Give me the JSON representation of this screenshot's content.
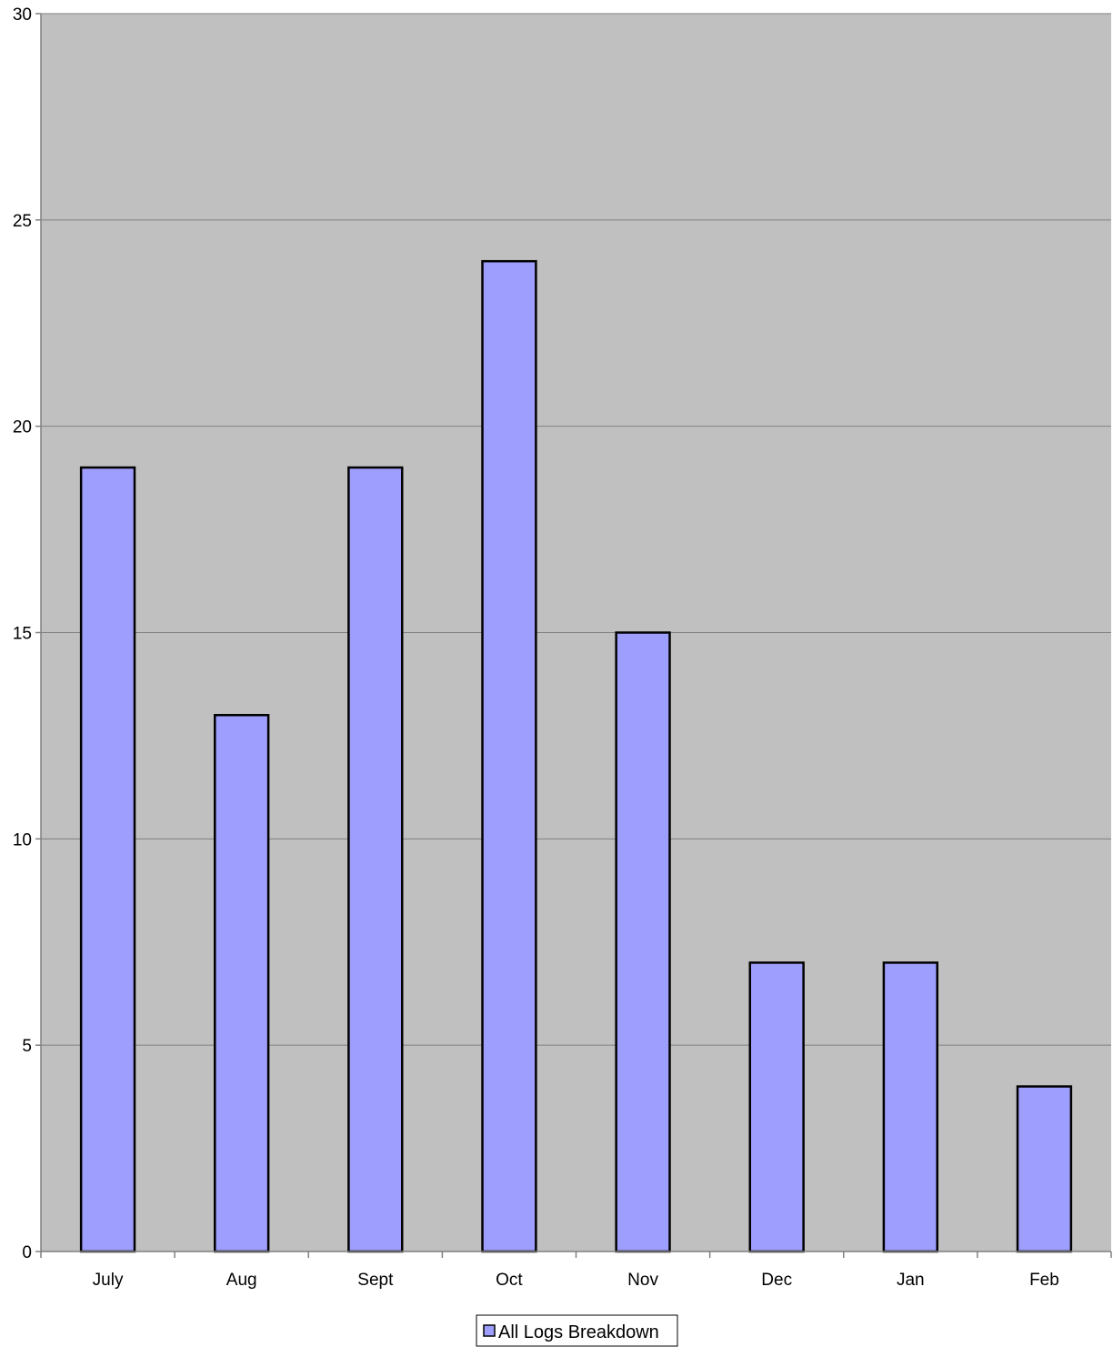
{
  "chart_data": {
    "type": "bar",
    "categories": [
      "July",
      "Aug",
      "Sept",
      "Oct",
      "Nov",
      "Dec",
      "Jan",
      "Feb"
    ],
    "series": [
      {
        "name": "All Logs Breakdown",
        "values": [
          19,
          13,
          19,
          24,
          15,
          7,
          7,
          4
        ]
      }
    ],
    "ylim": [
      0,
      30
    ],
    "yticks": [
      0,
      5,
      10,
      15,
      20,
      25,
      30
    ],
    "grid": true,
    "legend_position": "bottom-center",
    "colors": {
      "plot_background": "#c0c0c0",
      "bar_fill": "#9e9efe",
      "bar_stroke": "#000000",
      "gridline": "#808080"
    }
  }
}
